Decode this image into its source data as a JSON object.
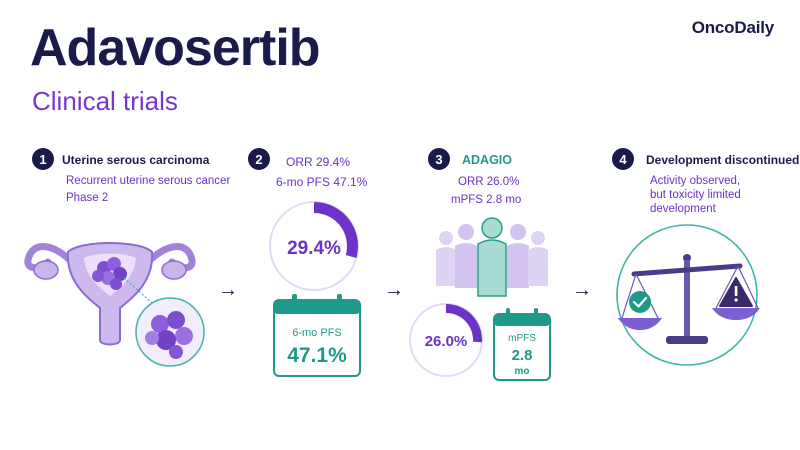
{
  "brand": "OncoDaily",
  "title": "Adavosertib",
  "subtitle": "Clinical trials",
  "arrow": "→",
  "steps": [
    {
      "number": "1",
      "heading": "Uterine serous carcinoma",
      "line1": "Recurrent uterine serous cancer",
      "line2": "Phase 2"
    },
    {
      "number": "2",
      "line1": "ORR 29.4%",
      "line2": "6-mo PFS 47.1%",
      "donut_value": "29.4%",
      "donut_fraction": 0.294,
      "card_label": "6-mo PFS",
      "card_value": "47.1%"
    },
    {
      "number": "3",
      "heading": "ADAGIO",
      "line1": "ORR 26.0%",
      "line2": "mPFS 2.8 mo",
      "donut_value": "26.0%",
      "donut_fraction": 0.26,
      "card_label": "mPFS",
      "card_value": "2.8",
      "card_unit": "mo"
    },
    {
      "number": "4",
      "heading": "Development discontinued",
      "line1": "Activity observed,",
      "line2": "but toxicity limited",
      "line3": "development"
    }
  ],
  "colors": {
    "navy": "#1a1b4b",
    "purple": "#6c33c8",
    "teal": "#1f9a8a",
    "lavender": "#e9e0f7"
  }
}
